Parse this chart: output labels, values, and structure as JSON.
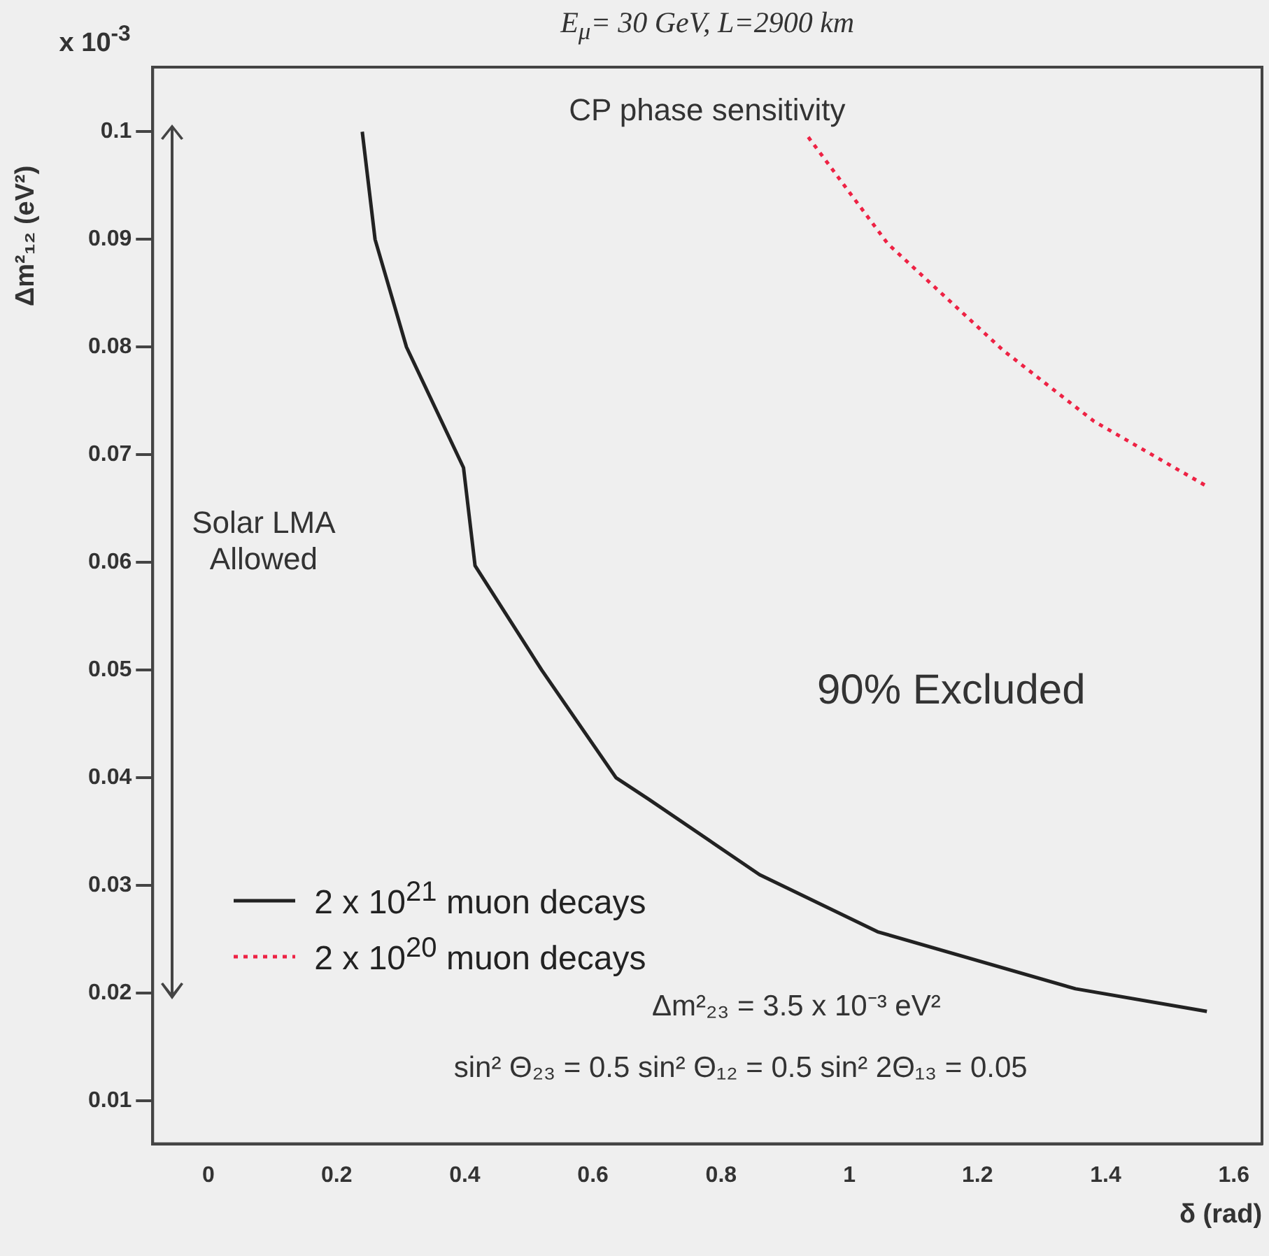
{
  "chart_data": {
    "type": "line",
    "title": "E$_{μ}$= 30 GeV, L=2900 km",
    "xlabel": "δ (rad)",
    "ylabel": "Δm²₁₂ (eV²)",
    "annotations": [
      "x 10$^{-3}$",
      "CP phase sensitivity",
      "Solar LMA Allowed",
      "90% Excluded",
      "Δm²₂₃ = 3.5 x 10⁻³ eV²",
      "sin² Θ₂₃ = 0.5  sin² Θ₁₂ = 0.5  sin² 2Θ₁₃ = 0.05"
    ],
    "xlim": [
      -0.087,
      1.644
    ],
    "ylim": [
      0.006,
      0.106
    ],
    "xticks": [
      0,
      0.2,
      0.4,
      0.6,
      0.8,
      1,
      1.2,
      1.4,
      1.6
    ],
    "yticks": [
      0.01,
      0.02,
      0.03,
      0.04,
      0.05,
      0.06,
      0.07,
      0.08,
      0.09,
      0.1
    ],
    "grid": false,
    "legend": "bottom left",
    "marker": "none",
    "series": [
      {
        "name": "2 x 10$^{21}$ muon decays",
        "color": "#222222",
        "line_style": "solid",
        "x": [
          0.24,
          0.26,
          0.309,
          0.398,
          0.416,
          0.52,
          0.636,
          0.687,
          0.86,
          1.044,
          1.353,
          1.558
        ],
        "values": [
          0.1,
          0.09,
          0.08,
          0.0688,
          0.0597,
          0.05,
          0.04,
          0.038,
          0.031,
          0.0257,
          0.0204,
          0.0183
        ]
      },
      {
        "name": "2 x 10$^{20}$ muon decays",
        "color": "#ee2244",
        "line_style": "dotted",
        "x": [
          0.936,
          1.06,
          1.24,
          1.382,
          1.56
        ],
        "values": [
          0.0995,
          0.0896,
          0.0797,
          0.0731,
          0.067
        ]
      }
    ]
  }
}
